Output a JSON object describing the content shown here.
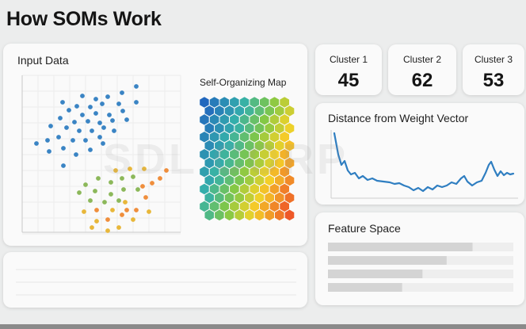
{
  "page_title": "How SOMs Work",
  "input_card": {
    "title": "Input Data"
  },
  "som": {
    "label": "Self-Organizing Map"
  },
  "clusters": [
    {
      "label": "Cluster 1",
      "value": "45"
    },
    {
      "label": "Cluster 2",
      "value": "62"
    },
    {
      "label": "Cluster 3",
      "value": "53"
    }
  ],
  "distance_card": {
    "title": "Distance from Weight Vector"
  },
  "feature_card": {
    "title": "Feature Space",
    "bars": [
      0.78,
      0.64,
      0.51,
      0.4
    ]
  },
  "watermark": "SDL CORP",
  "colors": {
    "blue": "#3a84c4",
    "green": "#8cb85a",
    "yellow": "#e8b73a",
    "orange": "#ef8e3c",
    "line": "#2f7ec1"
  }
}
